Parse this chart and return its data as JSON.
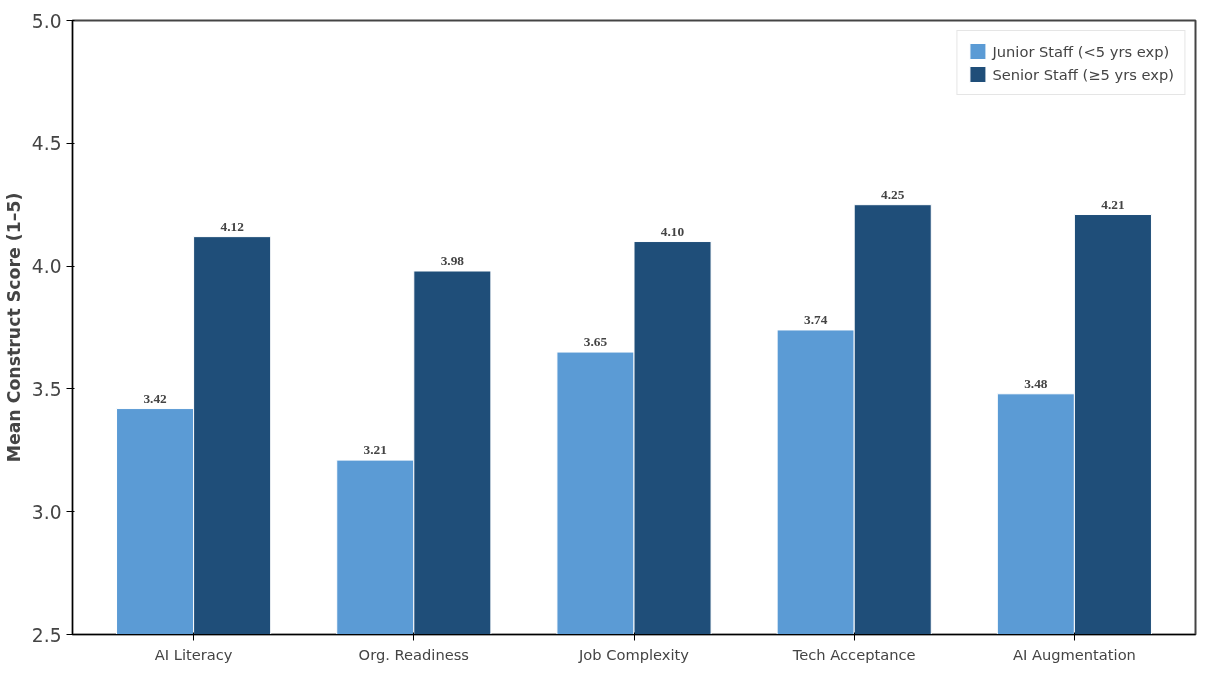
{
  "chart_data": {
    "type": "bar",
    "ylabel": "Mean Construct Score (1–5)",
    "categories": [
      "AI Literacy",
      "Org. Readiness",
      "Job Complexity",
      "Tech Acceptance",
      "AI Augmentation"
    ],
    "series": [
      {
        "name": "Junior Staff (<5 yrs exp)",
        "color": "#5b9bd5",
        "values": [
          3.42,
          3.21,
          3.65,
          3.74,
          3.48
        ],
        "value_labels": [
          "3.42",
          "3.21",
          "3.65",
          "3.74",
          "3.48"
        ]
      },
      {
        "name": "Senior Staff (≥5 yrs exp)",
        "color": "#1f4e79",
        "values": [
          4.12,
          3.98,
          4.1,
          4.25,
          4.21
        ],
        "value_labels": [
          "4.12",
          "3.98",
          "4.10",
          "4.25",
          "4.21"
        ]
      }
    ],
    "ylim": [
      2.5,
      5.0
    ],
    "yticks": [
      2.5,
      {
        "value": 3,
        "label": "3.0"
      },
      3.5,
      {
        "value": 4,
        "label": "4.0"
      },
      4.5,
      {
        "value": 5,
        "label": "5.0"
      }
    ],
    "legend": "top right",
    "grid": false
  }
}
